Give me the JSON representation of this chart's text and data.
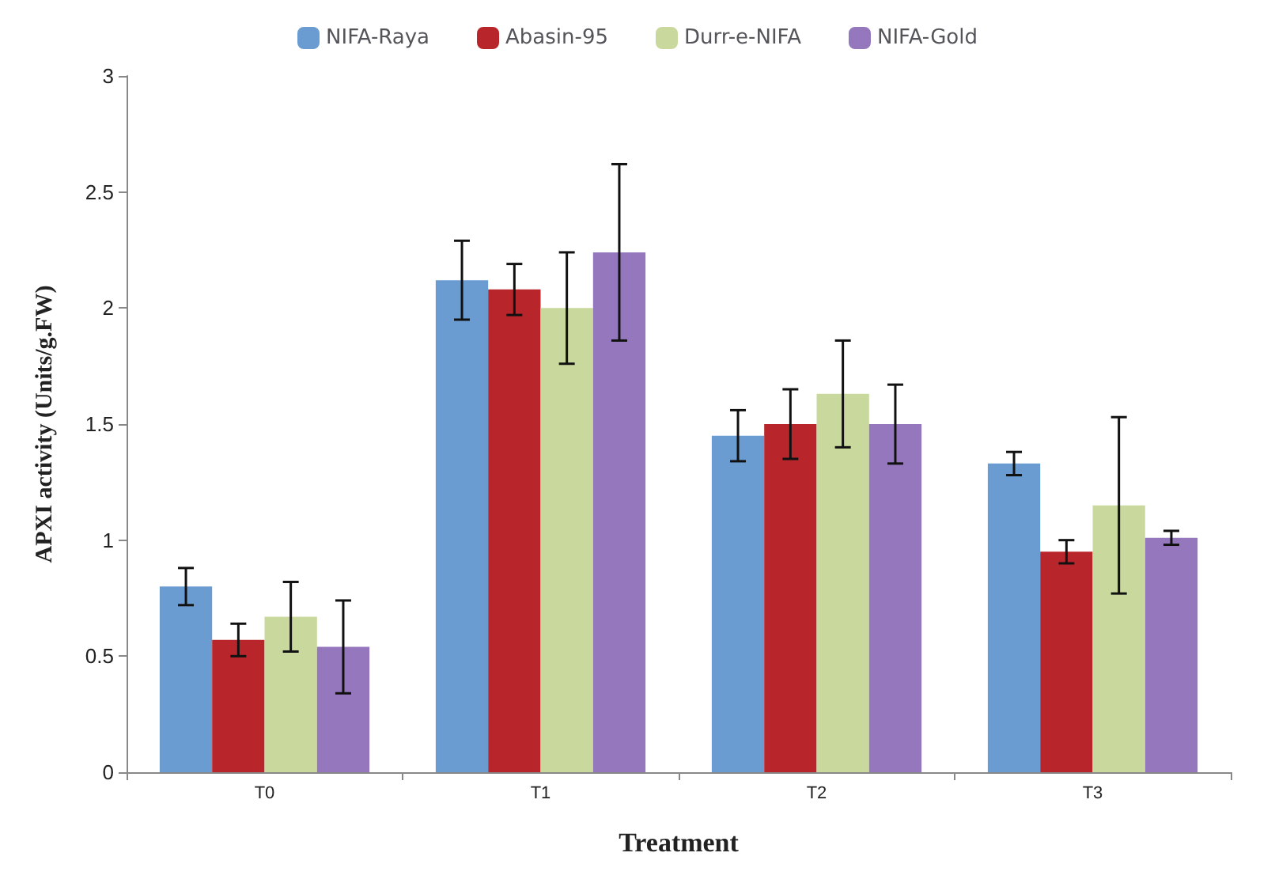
{
  "chart_data": {
    "type": "bar",
    "xlabel": "Treatment",
    "ylabel": "APXI activity (Units/g.FW)",
    "categories": [
      "T0",
      "T1",
      "T2",
      "T3"
    ],
    "series": [
      {
        "name": "NIFA-Raya",
        "color": "#6a9bd1",
        "values": [
          0.8,
          2.12,
          1.45,
          1.33
        ],
        "errors": [
          0.08,
          0.17,
          0.11,
          0.05
        ]
      },
      {
        "name": "Abasin-95",
        "color": "#b8262b",
        "values": [
          0.57,
          2.08,
          1.5,
          0.95
        ],
        "errors": [
          0.07,
          0.11,
          0.15,
          0.05
        ]
      },
      {
        "name": "Durr-e-NIFA",
        "color": "#c9d99e",
        "values": [
          0.67,
          2.0,
          1.63,
          1.15
        ],
        "errors": [
          0.15,
          0.24,
          0.23,
          0.38
        ]
      },
      {
        "name": "NIFA-Gold",
        "color": "#9577bd",
        "values": [
          0.54,
          2.24,
          1.5,
          1.01
        ],
        "errors": [
          0.2,
          0.38,
          0.17,
          0.03
        ]
      }
    ],
    "ylim": [
      0,
      3
    ],
    "yticks": [
      0,
      0.5,
      1,
      1.5,
      2,
      2.5,
      3
    ],
    "grid": false,
    "legend": "top"
  }
}
